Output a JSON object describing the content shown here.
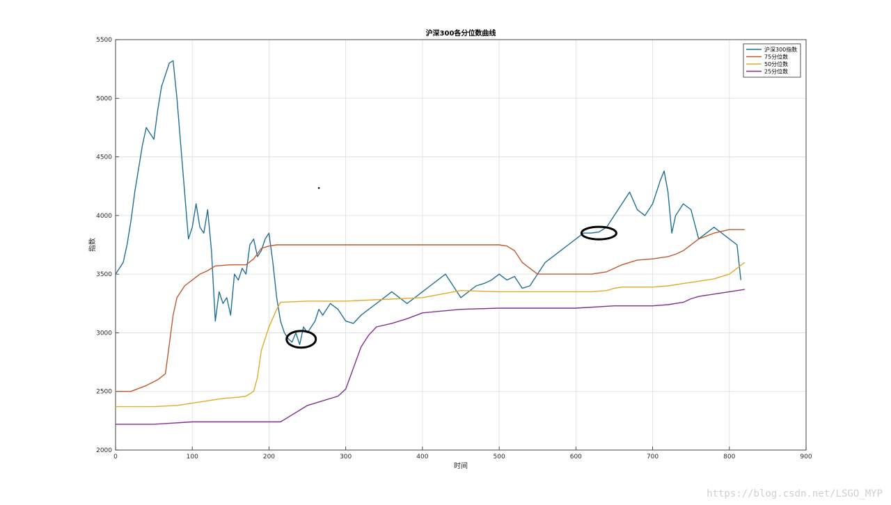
{
  "chart_data": {
    "type": "line",
    "title": "沪深300各分位数曲线",
    "xlabel": "时间",
    "ylabel": "指数",
    "xlim": [
      0,
      900
    ],
    "ylim": [
      2000,
      5500
    ],
    "xticks": [
      0,
      100,
      200,
      300,
      400,
      500,
      600,
      700,
      800,
      900
    ],
    "yticks": [
      2000,
      2500,
      3000,
      3500,
      4000,
      4500,
      5000,
      5500
    ],
    "grid": true,
    "legend_position": "top-right",
    "series": [
      {
        "name": "沪深300指数",
        "color": "#1f6f95",
        "x": [
          0,
          5,
          10,
          15,
          20,
          25,
          30,
          35,
          40,
          45,
          50,
          55,
          60,
          65,
          70,
          75,
          80,
          85,
          90,
          95,
          100,
          105,
          110,
          115,
          120,
          125,
          130,
          135,
          140,
          145,
          150,
          155,
          160,
          165,
          170,
          175,
          180,
          185,
          190,
          195,
          200,
          205,
          210,
          215,
          220,
          225,
          230,
          235,
          240,
          245,
          250,
          255,
          260,
          265,
          270,
          280,
          290,
          300,
          310,
          320,
          330,
          340,
          350,
          360,
          370,
          380,
          390,
          400,
          410,
          420,
          430,
          440,
          450,
          460,
          470,
          480,
          490,
          500,
          510,
          520,
          530,
          540,
          550,
          560,
          570,
          580,
          590,
          600,
          610,
          620,
          630,
          640,
          650,
          660,
          670,
          680,
          690,
          700,
          710,
          715,
          720,
          725,
          730,
          740,
          750,
          760,
          770,
          780,
          790,
          800,
          810,
          815
        ],
        "y": [
          3500,
          3550,
          3600,
          3750,
          3950,
          4200,
          4400,
          4600,
          4750,
          4700,
          4650,
          4900,
          5100,
          5200,
          5300,
          5320,
          5000,
          4600,
          4200,
          3800,
          3900,
          4100,
          3900,
          3850,
          4050,
          3700,
          3100,
          3350,
          3250,
          3300,
          3150,
          3500,
          3450,
          3550,
          3500,
          3750,
          3800,
          3650,
          3700,
          3800,
          3850,
          3600,
          3300,
          3100,
          3000,
          2950,
          2920,
          3000,
          2900,
          3050,
          3000,
          3050,
          3100,
          3200,
          3150,
          3250,
          3200,
          3100,
          3080,
          3150,
          3200,
          3250,
          3300,
          3350,
          3300,
          3250,
          3300,
          3350,
          3400,
          3450,
          3500,
          3400,
          3300,
          3350,
          3400,
          3420,
          3450,
          3500,
          3450,
          3480,
          3380,
          3400,
          3500,
          3600,
          3650,
          3700,
          3750,
          3800,
          3850,
          3850,
          3860,
          3900,
          4000,
          4100,
          4200,
          4050,
          4000,
          4100,
          4300,
          4380,
          4200,
          3850,
          4000,
          4100,
          4050,
          3800,
          3850,
          3900,
          3850,
          3800,
          3750,
          3450
        ]
      },
      {
        "name": "75分位数",
        "color": "#c0582b",
        "x": [
          0,
          20,
          40,
          55,
          65,
          70,
          75,
          80,
          90,
          100,
          110,
          120,
          130,
          150,
          170,
          180,
          190,
          200,
          210,
          220,
          250,
          300,
          400,
          500,
          510,
          520,
          530,
          540,
          550,
          600,
          620,
          640,
          650,
          660,
          670,
          680,
          700,
          720,
          730,
          740,
          760,
          780,
          800,
          810,
          820
        ],
        "y": [
          2500,
          2500,
          2550,
          2600,
          2650,
          2900,
          3150,
          3300,
          3400,
          3450,
          3500,
          3530,
          3570,
          3580,
          3580,
          3630,
          3720,
          3740,
          3750,
          3750,
          3750,
          3750,
          3750,
          3750,
          3740,
          3700,
          3600,
          3550,
          3500,
          3500,
          3500,
          3520,
          3550,
          3580,
          3600,
          3620,
          3630,
          3650,
          3670,
          3700,
          3800,
          3850,
          3880,
          3880,
          3880
        ]
      },
      {
        "name": "50分位数",
        "color": "#e2a92b",
        "x": [
          0,
          50,
          80,
          100,
          120,
          140,
          160,
          170,
          180,
          185,
          190,
          200,
          210,
          215,
          250,
          300,
          400,
          450,
          500,
          600,
          620,
          640,
          650,
          660,
          700,
          720,
          740,
          760,
          780,
          800,
          810,
          820
        ],
        "y": [
          2370,
          2370,
          2380,
          2400,
          2420,
          2440,
          2450,
          2460,
          2500,
          2620,
          2850,
          3050,
          3200,
          3260,
          3270,
          3270,
          3300,
          3360,
          3350,
          3350,
          3350,
          3360,
          3380,
          3390,
          3390,
          3400,
          3420,
          3440,
          3460,
          3500,
          3550,
          3600
        ]
      },
      {
        "name": "25分位数",
        "color": "#7e2f8e",
        "x": [
          0,
          50,
          100,
          150,
          200,
          215,
          220,
          250,
          270,
          290,
          300,
          310,
          320,
          330,
          340,
          360,
          380,
          400,
          450,
          500,
          550,
          600,
          650,
          700,
          720,
          740,
          750,
          760,
          780,
          800,
          820
        ],
        "y": [
          2220,
          2220,
          2240,
          2240,
          2240,
          2240,
          2260,
          2380,
          2420,
          2460,
          2520,
          2700,
          2880,
          2980,
          3050,
          3080,
          3120,
          3170,
          3200,
          3210,
          3210,
          3210,
          3230,
          3230,
          3240,
          3260,
          3290,
          3310,
          3330,
          3350,
          3370
        ]
      }
    ]
  },
  "watermark": "https://blog.csdn.net/LSGO_MYP"
}
